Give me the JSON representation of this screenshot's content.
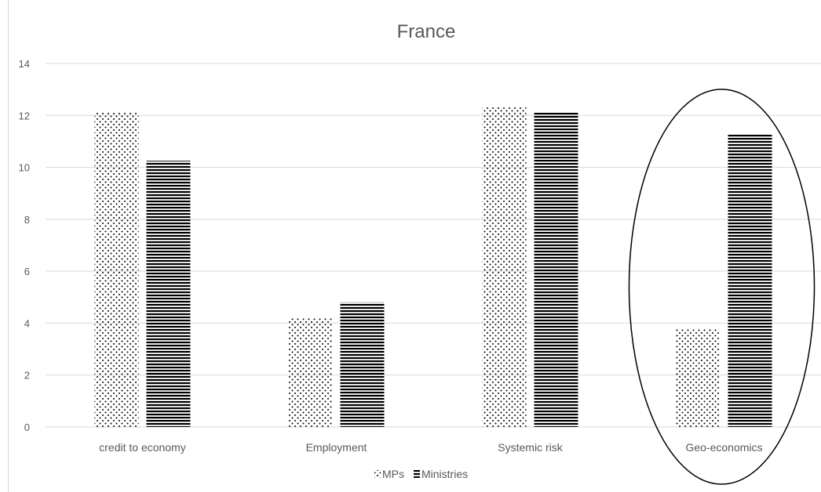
{
  "chart_data": {
    "type": "bar",
    "title": "France",
    "xlabel": "",
    "ylabel": "",
    "categories": [
      "credit to economy",
      "Employment",
      "Systemic risk",
      "Geo-economics"
    ],
    "series": [
      {
        "name": "MPs",
        "values": [
          12.1,
          4.2,
          12.35,
          3.8
        ],
        "pattern": "dots",
        "color": "#000000"
      },
      {
        "name": "Ministries",
        "values": [
          10.25,
          4.8,
          12.1,
          11.3
        ],
        "pattern": "horizontal-stripes",
        "color": "#000000"
      }
    ],
    "ylim": [
      0,
      14
    ],
    "yticks": [
      "0",
      "2",
      "4",
      "6",
      "8",
      "10",
      "12",
      "14"
    ],
    "grid": true,
    "legend_position": "bottom",
    "annotation": {
      "type": "ellipse",
      "highlights": "Geo-economics"
    }
  },
  "colors": {
    "gridline": "#d9d9d9",
    "text": "#595959",
    "bars": "#000000",
    "annotation": "#000000"
  }
}
